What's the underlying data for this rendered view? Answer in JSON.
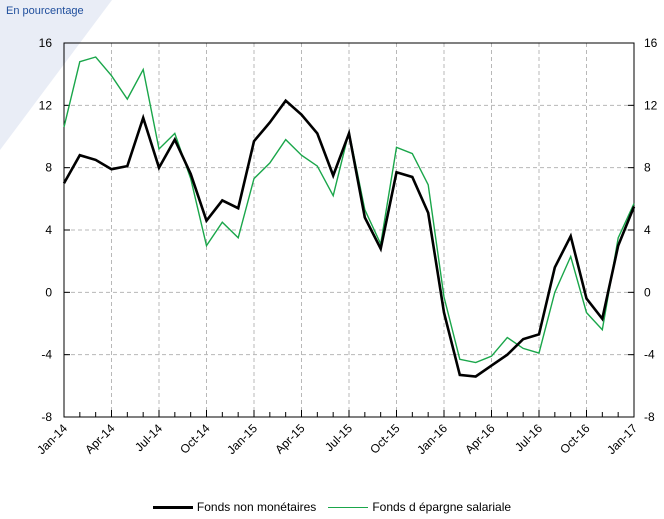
{
  "unit_label": "En pourcentage",
  "colors": {
    "series1": "#000000",
    "series2": "#1aa64a",
    "grid": "#b8b8b8",
    "background_shape": "#e9edf6"
  },
  "chart_data": {
    "type": "line",
    "title": "",
    "xlabel": "",
    "ylabel": "",
    "ylim": [
      -8,
      16
    ],
    "yticks": [
      -8,
      -4,
      0,
      4,
      8,
      12,
      16
    ],
    "grid": true,
    "legend_position": "bottom",
    "x": [
      "2014-01",
      "2014-02",
      "2014-03",
      "2014-04",
      "2014-05",
      "2014-06",
      "2014-07",
      "2014-08",
      "2014-09",
      "2014-10",
      "2014-11",
      "2014-12",
      "2015-01",
      "2015-02",
      "2015-03",
      "2015-04",
      "2015-05",
      "2015-06",
      "2015-07",
      "2015-08",
      "2015-09",
      "2015-10",
      "2015-11",
      "2015-12",
      "2016-01",
      "2016-02",
      "2016-03",
      "2016-04",
      "2016-05",
      "2016-06",
      "2016-07",
      "2016-08",
      "2016-09",
      "2016-10",
      "2016-11",
      "2016-12",
      "2017-01"
    ],
    "xtick_labels": [
      "Jan-14",
      "Apr-14",
      "Jul-14",
      "Oct-14",
      "Jan-15",
      "Apr-15",
      "Jul-15",
      "Oct-15",
      "Jan-16",
      "Apr-16",
      "Jul-16",
      "Oct-16",
      "Jan-17"
    ],
    "series": [
      {
        "name": "Fonds non monétaires",
        "values": [
          7.0,
          8.8,
          8.5,
          7.9,
          8.1,
          11.2,
          8.0,
          9.8,
          7.6,
          4.6,
          5.9,
          5.4,
          9.7,
          10.9,
          12.3,
          11.4,
          10.2,
          7.5,
          10.2,
          4.8,
          2.8,
          7.7,
          7.4,
          5.1,
          -1.3,
          -5.3,
          -5.4,
          -4.7,
          -4.0,
          -3.0,
          -2.7,
          1.6,
          3.6,
          -0.4,
          -1.7,
          3.0,
          5.5
        ]
      },
      {
        "name": "Fonds d épargne salariale",
        "values": [
          10.6,
          14.8,
          15.1,
          13.9,
          12.4,
          14.3,
          9.2,
          10.2,
          7.3,
          3.0,
          4.5,
          3.5,
          7.3,
          8.3,
          9.8,
          8.8,
          8.1,
          6.2,
          10.3,
          5.3,
          3.1,
          9.3,
          8.9,
          6.9,
          -0.3,
          -4.3,
          -4.5,
          -4.1,
          -2.9,
          -3.6,
          -3.9,
          0.0,
          2.3,
          -1.3,
          -2.4,
          3.5,
          5.7
        ]
      }
    ]
  }
}
